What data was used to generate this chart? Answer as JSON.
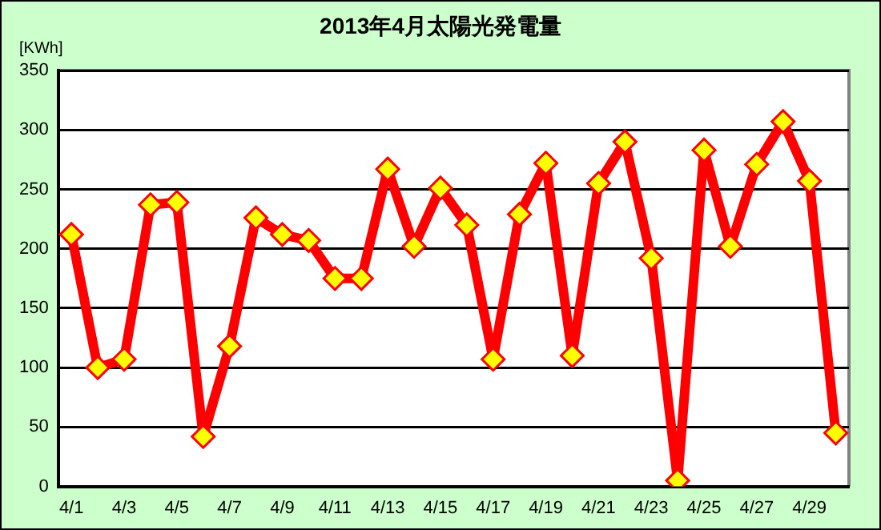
{
  "chart_data": {
    "type": "line",
    "title": "2013年4月太陽光発電量",
    "ylabel": "[KWh]",
    "categories": [
      "4/1",
      null,
      "4/3",
      null,
      "4/5",
      null,
      "4/7",
      null,
      "4/9",
      null,
      "4/11",
      null,
      "4/13",
      null,
      "4/15",
      null,
      "4/17",
      null,
      "4/19",
      null,
      "4/21",
      null,
      "4/23",
      null,
      "4/25",
      null,
      "4/27",
      null,
      "4/29",
      null
    ],
    "series": [
      {
        "color": "#ff0000",
        "values": [
          212,
          100,
          107,
          237,
          239,
          42,
          118,
          226,
          212,
          207,
          175,
          175,
          267,
          202,
          251,
          220,
          107,
          229,
          272,
          110,
          255,
          290,
          192,
          5,
          283,
          202,
          271,
          307,
          257,
          45
        ]
      }
    ],
    "ylim": [
      0,
      350
    ],
    "yticks": [
      0,
      50,
      100,
      150,
      200,
      250,
      300,
      350
    ],
    "grid": "y",
    "legend": false,
    "marker": "diamond",
    "line_style": "solid"
  }
}
